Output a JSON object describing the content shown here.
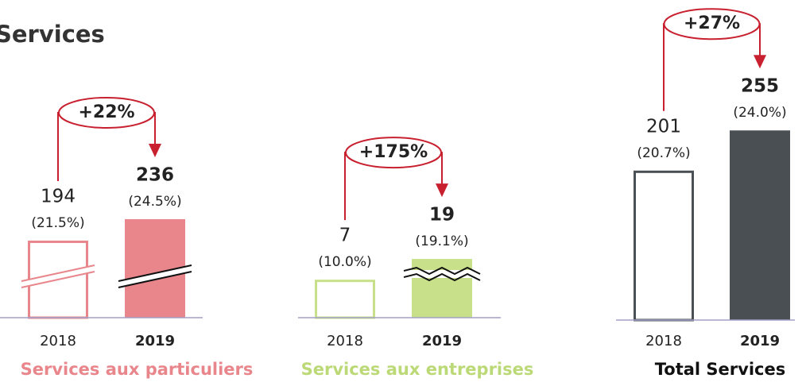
{
  "title": "Services",
  "chart_data": [
    {
      "type": "bar",
      "title": "Services aux particuliers",
      "categories": [
        "2018",
        "2019"
      ],
      "values": [
        194,
        236
      ],
      "shares": [
        21.5,
        24.5
      ],
      "share_labels": [
        "(21.5%)",
        "(24.5%)"
      ],
      "growth": 22,
      "growth_label": "+22%",
      "color": "#e8868c",
      "title_color": "#e8868c",
      "ylim": [
        43,
        432
      ],
      "axis_break": "slash"
    },
    {
      "type": "bar",
      "title": "Services aux entreprises",
      "categories": [
        "2018",
        "2019"
      ],
      "values": [
        7,
        19
      ],
      "shares": [
        10.0,
        19.1
      ],
      "share_labels": [
        "(10.0%)",
        "(19.1%)"
      ],
      "growth": 175,
      "growth_label": "+175%",
      "color": "#c8e08a",
      "title_color": "#bcd977",
      "ylim": [
        -15,
        100
      ],
      "axis_break": "wave"
    },
    {
      "type": "bar",
      "title": "Total Services",
      "categories": [
        "2018",
        "2019"
      ],
      "values": [
        201,
        255
      ],
      "shares": [
        20.7,
        24.0
      ],
      "share_labels": [
        "(20.7%)",
        "(24.0%)"
      ],
      "growth": 27,
      "growth_label": "+27%",
      "color": "#4a4f54",
      "title_color": "#111111",
      "ylim": [
        0,
        267
      ]
    }
  ]
}
